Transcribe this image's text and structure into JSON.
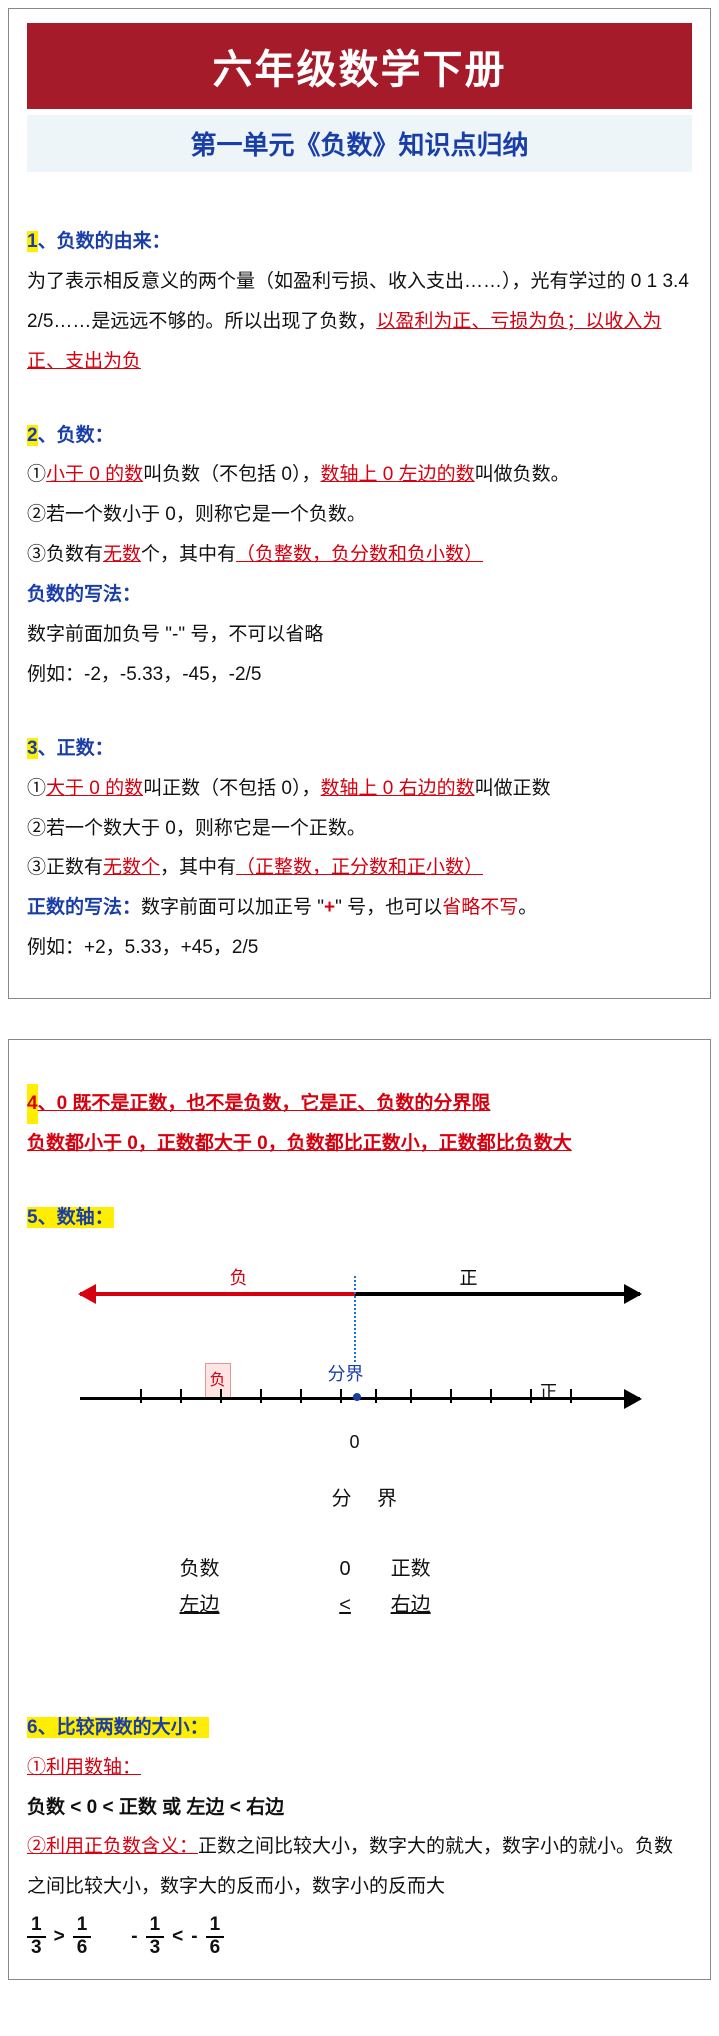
{
  "banner": "六年级数学下册",
  "subtitle": "第一单元《负数》知识点归纳",
  "s1": {
    "head_num": "1",
    "head_txt": "、负数的由来：",
    "p1a": "为了表示相反意义的两个量（如盈利亏损、收入支出……），光有学过的 0 1 3.4 2/5……是远远不够的。所以出现了负数，",
    "p1b": "以盈利为正、亏损为负；以收入为正、支出为负"
  },
  "s2": {
    "head_num": "2",
    "head_txt": "、负数：",
    "l1a": "①",
    "l1b": "小于 0 的数",
    "l1c": "叫负数（不包括 0），",
    "l1d": "数轴上 0 左边的数",
    "l1e": "叫做负数。",
    "l2": "②若一个数小于 0，则称它是一个负数。",
    "l3a": "③负数有",
    "l3b": "无数",
    "l3c": "个，其中有",
    "l3d": "（负整数，负分数和负小数）",
    "write_head": "负数的写法：",
    "write1": "数字前面加负号 \"-\" 号，不可以省略",
    "write2": "例如：-2，-5.33，-45，-2/5"
  },
  "s3": {
    "head_num": "3",
    "head_txt": "、正数：",
    "l1a": "①",
    "l1b": "大于 0 的数",
    "l1c": "叫正数（不包括 0），",
    "l1d": "数轴上 0 右边的数",
    "l1e": "叫做正数",
    "l2": "②若一个数大于 0，则称它是一个正数。",
    "l3a": "③正数有",
    "l3b": "无数个",
    "l3c": "，其中有",
    "l3d": "（正整数，正分数和正小数）",
    "write_head": "正数的写法：",
    "write_mid": "数字前面可以加正号 \"",
    "write_plus": "+",
    "write_mid2": "\" 号，也可以",
    "write_omit": "省略不写",
    "write_end": "。",
    "write2": "例如：+2，5.33，+45，2/5"
  },
  "s4": {
    "head_num": "4",
    "head_txt": "、0 既不是正数，也不是负数，它是正、负数的分界限",
    "line2": "负数都小于 0，正数都大于 0，负数都比正数小，正数都比负数大"
  },
  "s5": {
    "head_num": "5",
    "head_txt": "、数轴：",
    "fu": "负",
    "zheng": "正",
    "fenjie": "分界",
    "zero": "0",
    "fushu": "负数",
    "zhengshu": "正数",
    "fen2": "分 界",
    "zuobian": "左边",
    "youbian": "右边",
    "lt": "<"
  },
  "s6": {
    "head_num": "6",
    "head_txt": "、比较两数的大小：",
    "m1": "①利用数轴：",
    "m2": "负数 < 0 < 正数 或 左边 < 右边",
    "m3a": "②利用正负数含义：",
    "m3b": "正数之间比较大小，数字大的就大，数字小的就小。负数之间比较大小，数字大的反而小，数字小的反而大",
    "frac": {
      "a_n": "1",
      "a_d": "3",
      "op1": ">",
      "b_n": "1",
      "b_d": "6",
      "sep": "",
      "c_n": "1",
      "c_d": "3",
      "op2": "<",
      "d_n": "1",
      "d_d": "6",
      "neg": "-"
    }
  },
  "colors": {
    "banner_bg": "#a61b29",
    "highlight": "#ffee00",
    "red": "#d6000f",
    "blue": "#1a3ea8"
  },
  "ticks": [
    60,
    100,
    140,
    180,
    220,
    260,
    295,
    330,
    370,
    410,
    450,
    490
  ]
}
